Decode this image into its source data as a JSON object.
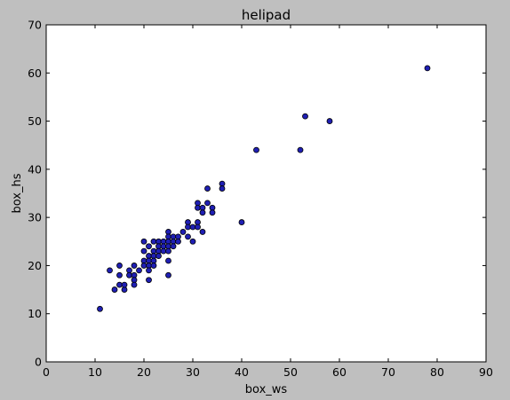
{
  "chart_data": {
    "type": "scatter",
    "title": "helipad",
    "xlabel": "box_ws",
    "ylabel": "box_hs",
    "xlim": [
      0,
      90
    ],
    "ylim": [
      0,
      70
    ],
    "xticks": [
      0,
      10,
      20,
      30,
      40,
      50,
      60,
      70,
      80,
      90
    ],
    "yticks": [
      0,
      10,
      20,
      30,
      40,
      50,
      60,
      70
    ],
    "grid": false,
    "colors": {
      "marker_fill": "#1f1fb4",
      "marker_edge": "#000000",
      "background": "#bfbfbf",
      "plot_area": "#ffffff"
    },
    "points": [
      [
        11,
        11
      ],
      [
        13,
        19
      ],
      [
        14,
        15
      ],
      [
        15,
        20
      ],
      [
        15,
        18
      ],
      [
        15,
        16
      ],
      [
        16,
        15
      ],
      [
        16,
        16
      ],
      [
        17,
        19
      ],
      [
        17,
        18
      ],
      [
        18,
        18
      ],
      [
        18,
        17
      ],
      [
        18,
        16
      ],
      [
        18,
        20
      ],
      [
        19,
        19
      ],
      [
        20,
        25
      ],
      [
        20,
        23
      ],
      [
        20,
        21
      ],
      [
        20,
        20
      ],
      [
        21,
        24
      ],
      [
        21,
        22
      ],
      [
        21,
        21
      ],
      [
        21,
        20
      ],
      [
        21,
        19
      ],
      [
        21,
        17
      ],
      [
        22,
        25
      ],
      [
        22,
        23
      ],
      [
        22,
        22
      ],
      [
        22,
        21
      ],
      [
        22,
        20
      ],
      [
        23,
        25
      ],
      [
        23,
        24
      ],
      [
        23,
        23
      ],
      [
        23,
        22
      ],
      [
        24,
        25
      ],
      [
        24,
        24
      ],
      [
        24,
        23
      ],
      [
        25,
        27
      ],
      [
        25,
        26
      ],
      [
        25,
        25
      ],
      [
        25,
        24
      ],
      [
        25,
        23
      ],
      [
        25,
        21
      ],
      [
        25,
        18
      ],
      [
        26,
        26
      ],
      [
        26,
        25
      ],
      [
        26,
        24
      ],
      [
        27,
        26
      ],
      [
        27,
        25
      ],
      [
        28,
        27
      ],
      [
        29,
        29
      ],
      [
        29,
        28
      ],
      [
        29,
        26
      ],
      [
        30,
        28
      ],
      [
        30,
        25
      ],
      [
        31,
        33
      ],
      [
        31,
        32
      ],
      [
        31,
        29
      ],
      [
        31,
        28
      ],
      [
        32,
        32
      ],
      [
        32,
        31
      ],
      [
        32,
        27
      ],
      [
        33,
        36
      ],
      [
        33,
        33
      ],
      [
        34,
        32
      ],
      [
        34,
        31
      ],
      [
        36,
        37
      ],
      [
        36,
        36
      ],
      [
        40,
        29
      ],
      [
        43,
        44
      ],
      [
        52,
        44
      ],
      [
        53,
        51
      ],
      [
        58,
        50
      ],
      [
        78,
        61
      ]
    ]
  }
}
